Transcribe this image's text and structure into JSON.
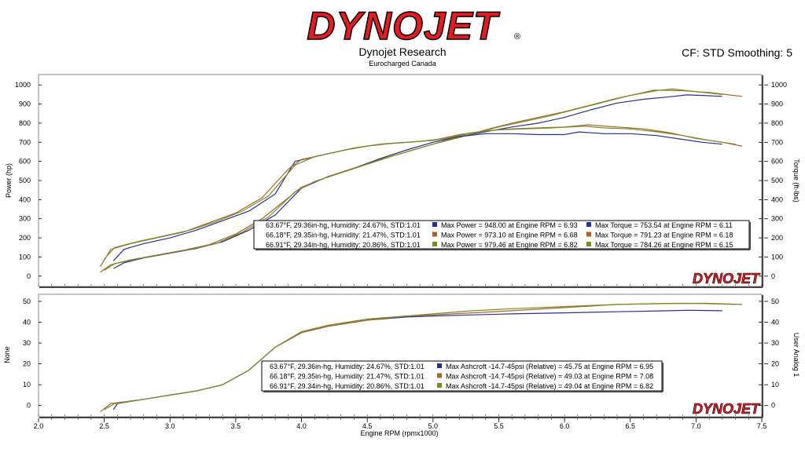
{
  "header": {
    "logo_text": "DYNOJET",
    "title": "Dynojet Research",
    "subtitle": "Eurocharged Canada",
    "cf_info": "CF: STD Smoothing: 5"
  },
  "colors": {
    "run1": "#2a2f8f",
    "run2": "#a8642a",
    "run3": "#7d8a24",
    "run3_light": "#b5cd47",
    "logo_red": "#e31b23",
    "panel_border": "#7f7f7f"
  },
  "chart_data": [
    {
      "type": "line",
      "y_left_label": "Power (hp)",
      "y_right_label": "Torque (ft-lbs)",
      "y_ticks": [
        0,
        100,
        200,
        300,
        400,
        500,
        600,
        700,
        800,
        900,
        1000
      ],
      "ylim": [
        -50,
        1050
      ],
      "xlim": [
        2.0,
        7.5
      ],
      "series": [
        {
          "kind": "power",
          "run": 1,
          "x": [
            2.57,
            2.65,
            2.8,
            3.0,
            3.2,
            3.4,
            3.6,
            3.8,
            4.0,
            4.2,
            4.4,
            4.6,
            4.8,
            5.0,
            5.2,
            5.4,
            5.6,
            5.8,
            6.0,
            6.2,
            6.4,
            6.6,
            6.8,
            6.93,
            7.05,
            7.2
          ],
          "y": [
            40,
            70,
            95,
            120,
            145,
            180,
            240,
            320,
            460,
            520,
            565,
            615,
            660,
            700,
            730,
            755,
            780,
            800,
            830,
            870,
            905,
            925,
            938,
            948,
            945,
            940
          ]
        },
        {
          "kind": "power",
          "run": 2,
          "x": [
            2.47,
            2.55,
            2.7,
            2.9,
            3.1,
            3.3,
            3.5,
            3.7,
            3.9,
            4.0,
            4.2,
            4.4,
            4.6,
            4.8,
            5.0,
            5.2,
            5.4,
            5.6,
            5.8,
            6.0,
            6.2,
            6.4,
            6.6,
            6.68,
            6.9,
            7.1,
            7.35
          ],
          "y": [
            20,
            60,
            85,
            110,
            135,
            165,
            220,
            300,
            410,
            465,
            520,
            565,
            610,
            650,
            690,
            725,
            765,
            800,
            830,
            860,
            895,
            930,
            960,
            973,
            970,
            960,
            940
          ]
        },
        {
          "kind": "power",
          "run": 3,
          "x": [
            2.5,
            2.58,
            2.75,
            2.95,
            3.15,
            3.35,
            3.55,
            3.75,
            3.95,
            4.1,
            4.3,
            4.5,
            4.7,
            4.9,
            5.1,
            5.3,
            5.5,
            5.7,
            5.9,
            6.1,
            6.3,
            6.5,
            6.7,
            6.82,
            7.0,
            7.2
          ],
          "y": [
            30,
            65,
            90,
            115,
            140,
            170,
            230,
            310,
            440,
            495,
            540,
            585,
            630,
            670,
            710,
            745,
            780,
            810,
            840,
            875,
            910,
            945,
            970,
            979,
            965,
            950
          ]
        },
        {
          "kind": "torque",
          "run": 1,
          "x": [
            2.57,
            2.65,
            2.8,
            3.0,
            3.2,
            3.4,
            3.6,
            3.8,
            3.95,
            4.2,
            4.4,
            4.6,
            4.8,
            5.0,
            5.2,
            5.4,
            5.6,
            5.8,
            6.0,
            6.11,
            6.3,
            6.5,
            6.7,
            6.9,
            7.05,
            7.2
          ],
          "y": [
            80,
            140,
            170,
            200,
            240,
            290,
            340,
            430,
            600,
            640,
            670,
            690,
            700,
            710,
            730,
            745,
            745,
            740,
            740,
            754,
            745,
            745,
            735,
            715,
            700,
            690
          ]
        },
        {
          "kind": "torque",
          "run": 2,
          "x": [
            2.47,
            2.55,
            2.7,
            2.9,
            3.1,
            3.3,
            3.5,
            3.7,
            3.9,
            4.0,
            4.2,
            4.4,
            4.6,
            4.8,
            5.0,
            5.2,
            5.4,
            5.6,
            5.8,
            6.0,
            6.18,
            6.4,
            6.6,
            6.8,
            7.0,
            7.2,
            7.35
          ],
          "y": [
            50,
            140,
            170,
            200,
            230,
            280,
            330,
            410,
            560,
            610,
            640,
            670,
            690,
            700,
            710,
            740,
            760,
            770,
            775,
            780,
            791,
            780,
            770,
            750,
            720,
            700,
            680
          ]
        },
        {
          "kind": "torque",
          "run": 3,
          "x": [
            2.5,
            2.58,
            2.75,
            2.95,
            3.15,
            3.35,
            3.55,
            3.75,
            3.95,
            4.1,
            4.3,
            4.5,
            4.7,
            4.9,
            5.1,
            5.3,
            5.5,
            5.7,
            5.9,
            6.15,
            6.3,
            6.5,
            6.7,
            6.9,
            7.1,
            7.3
          ],
          "y": [
            90,
            150,
            180,
            210,
            240,
            285,
            340,
            420,
            580,
            625,
            655,
            680,
            695,
            705,
            720,
            750,
            765,
            770,
            775,
            784,
            775,
            770,
            755,
            735,
            710,
            690
          ]
        }
      ],
      "legend": [
        {
          "run": 1,
          "conditions": "63.67°F, 29.36in-hg, Humidity: 24.67%, STD:1.01",
          "power": "Max Power = 948.00 at Engine RPM = 6.93",
          "torque": "Max Torque = 753.54 at Engine RPM = 6.11"
        },
        {
          "run": 2,
          "conditions": "66.18°F, 29.35in-hg, Humidity: 21.47%, STD:1.01",
          "power": "Max Power = 973.10 at Engine RPM = 6.68",
          "torque": "Max Torque = 791.23 at Engine RPM = 6.18"
        },
        {
          "run": 3,
          "conditions": "66.91°F, 29.34in-hg, Humidity: 20.86%, STD:1.01",
          "power": "Max Power = 979.46 at Engine RPM = 6.82",
          "torque": "Max Torque = 784.26 at Engine RPM = 6.15"
        }
      ],
      "watermark": "DYNOJET"
    },
    {
      "type": "line",
      "y_left_label": "None",
      "y_right_label": "User Analog 1",
      "y_ticks": [
        0,
        10,
        20,
        30,
        40,
        50
      ],
      "ylim": [
        -5,
        53
      ],
      "xlim": [
        2.0,
        7.5
      ],
      "xlabel": "Engine RPM (rpmx1000)",
      "x_ticks": [
        "2.0",
        "2.5",
        "3.0",
        "3.5",
        "4.0",
        "4.5",
        "5.0",
        "5.5",
        "6.0",
        "6.5",
        "7.0",
        "7.5"
      ],
      "series": [
        {
          "kind": "boost",
          "run": 1,
          "x": [
            2.57,
            2.6,
            2.8,
            3.0,
            3.2,
            3.4,
            3.6,
            3.8,
            4.0,
            4.2,
            4.5,
            4.8,
            5.0,
            5.3,
            5.6,
            6.0,
            6.4,
            6.8,
            6.95,
            7.2
          ],
          "y": [
            -2,
            1,
            3,
            5,
            7,
            10,
            17,
            28,
            35,
            38,
            41,
            42.5,
            43,
            43.5,
            44,
            44.5,
            45,
            45.5,
            45.75,
            45.5
          ]
        },
        {
          "kind": "boost",
          "run": 2,
          "x": [
            2.47,
            2.55,
            2.8,
            3.0,
            3.2,
            3.4,
            3.6,
            3.8,
            4.0,
            4.2,
            4.5,
            4.8,
            5.0,
            5.3,
            5.6,
            6.0,
            6.4,
            6.8,
            7.08,
            7.35
          ],
          "y": [
            -3,
            1,
            3,
            5,
            7,
            10,
            17,
            28,
            35,
            38,
            41,
            43,
            43.5,
            44.5,
            45.5,
            47,
            48.5,
            49,
            49.03,
            48.5
          ]
        },
        {
          "kind": "boost",
          "run": 3,
          "x": [
            2.5,
            2.58,
            2.8,
            3.0,
            3.2,
            3.4,
            3.6,
            3.8,
            4.0,
            4.2,
            4.5,
            4.8,
            5.0,
            5.3,
            5.6,
            6.0,
            6.4,
            6.82,
            7.0,
            7.3
          ],
          "y": [
            -2,
            1,
            3,
            5,
            7,
            10,
            17,
            28,
            35.5,
            38.5,
            41.5,
            43,
            44,
            45.5,
            46.5,
            47.5,
            48.5,
            49.04,
            49,
            48.5
          ]
        }
      ],
      "legend": [
        {
          "run": 1,
          "conditions": "63.67°F, 29.36in-hg, Humidity: 24.67%, STD:1.01",
          "boost": "Max Ashcroft -14.7-45psi (Relative) = 45.75 at Engine RPM = 6.95"
        },
        {
          "run": 2,
          "conditions": "66.18°F, 29.35in-hg, Humidity: 21.47%, STD:1.01",
          "boost": "Max Ashcroft -14.7-45psi (Relative) = 49.03 at Engine RPM = 7.08"
        },
        {
          "run": 3,
          "conditions": "66.91°F, 29.34in-hg, Humidity: 20.86%, STD:1.01",
          "boost": "Max Ashcroft -14.7-45psi (Relative) = 49.04 at Engine RPM = 6.82"
        }
      ],
      "watermark": "DYNOJET"
    }
  ]
}
